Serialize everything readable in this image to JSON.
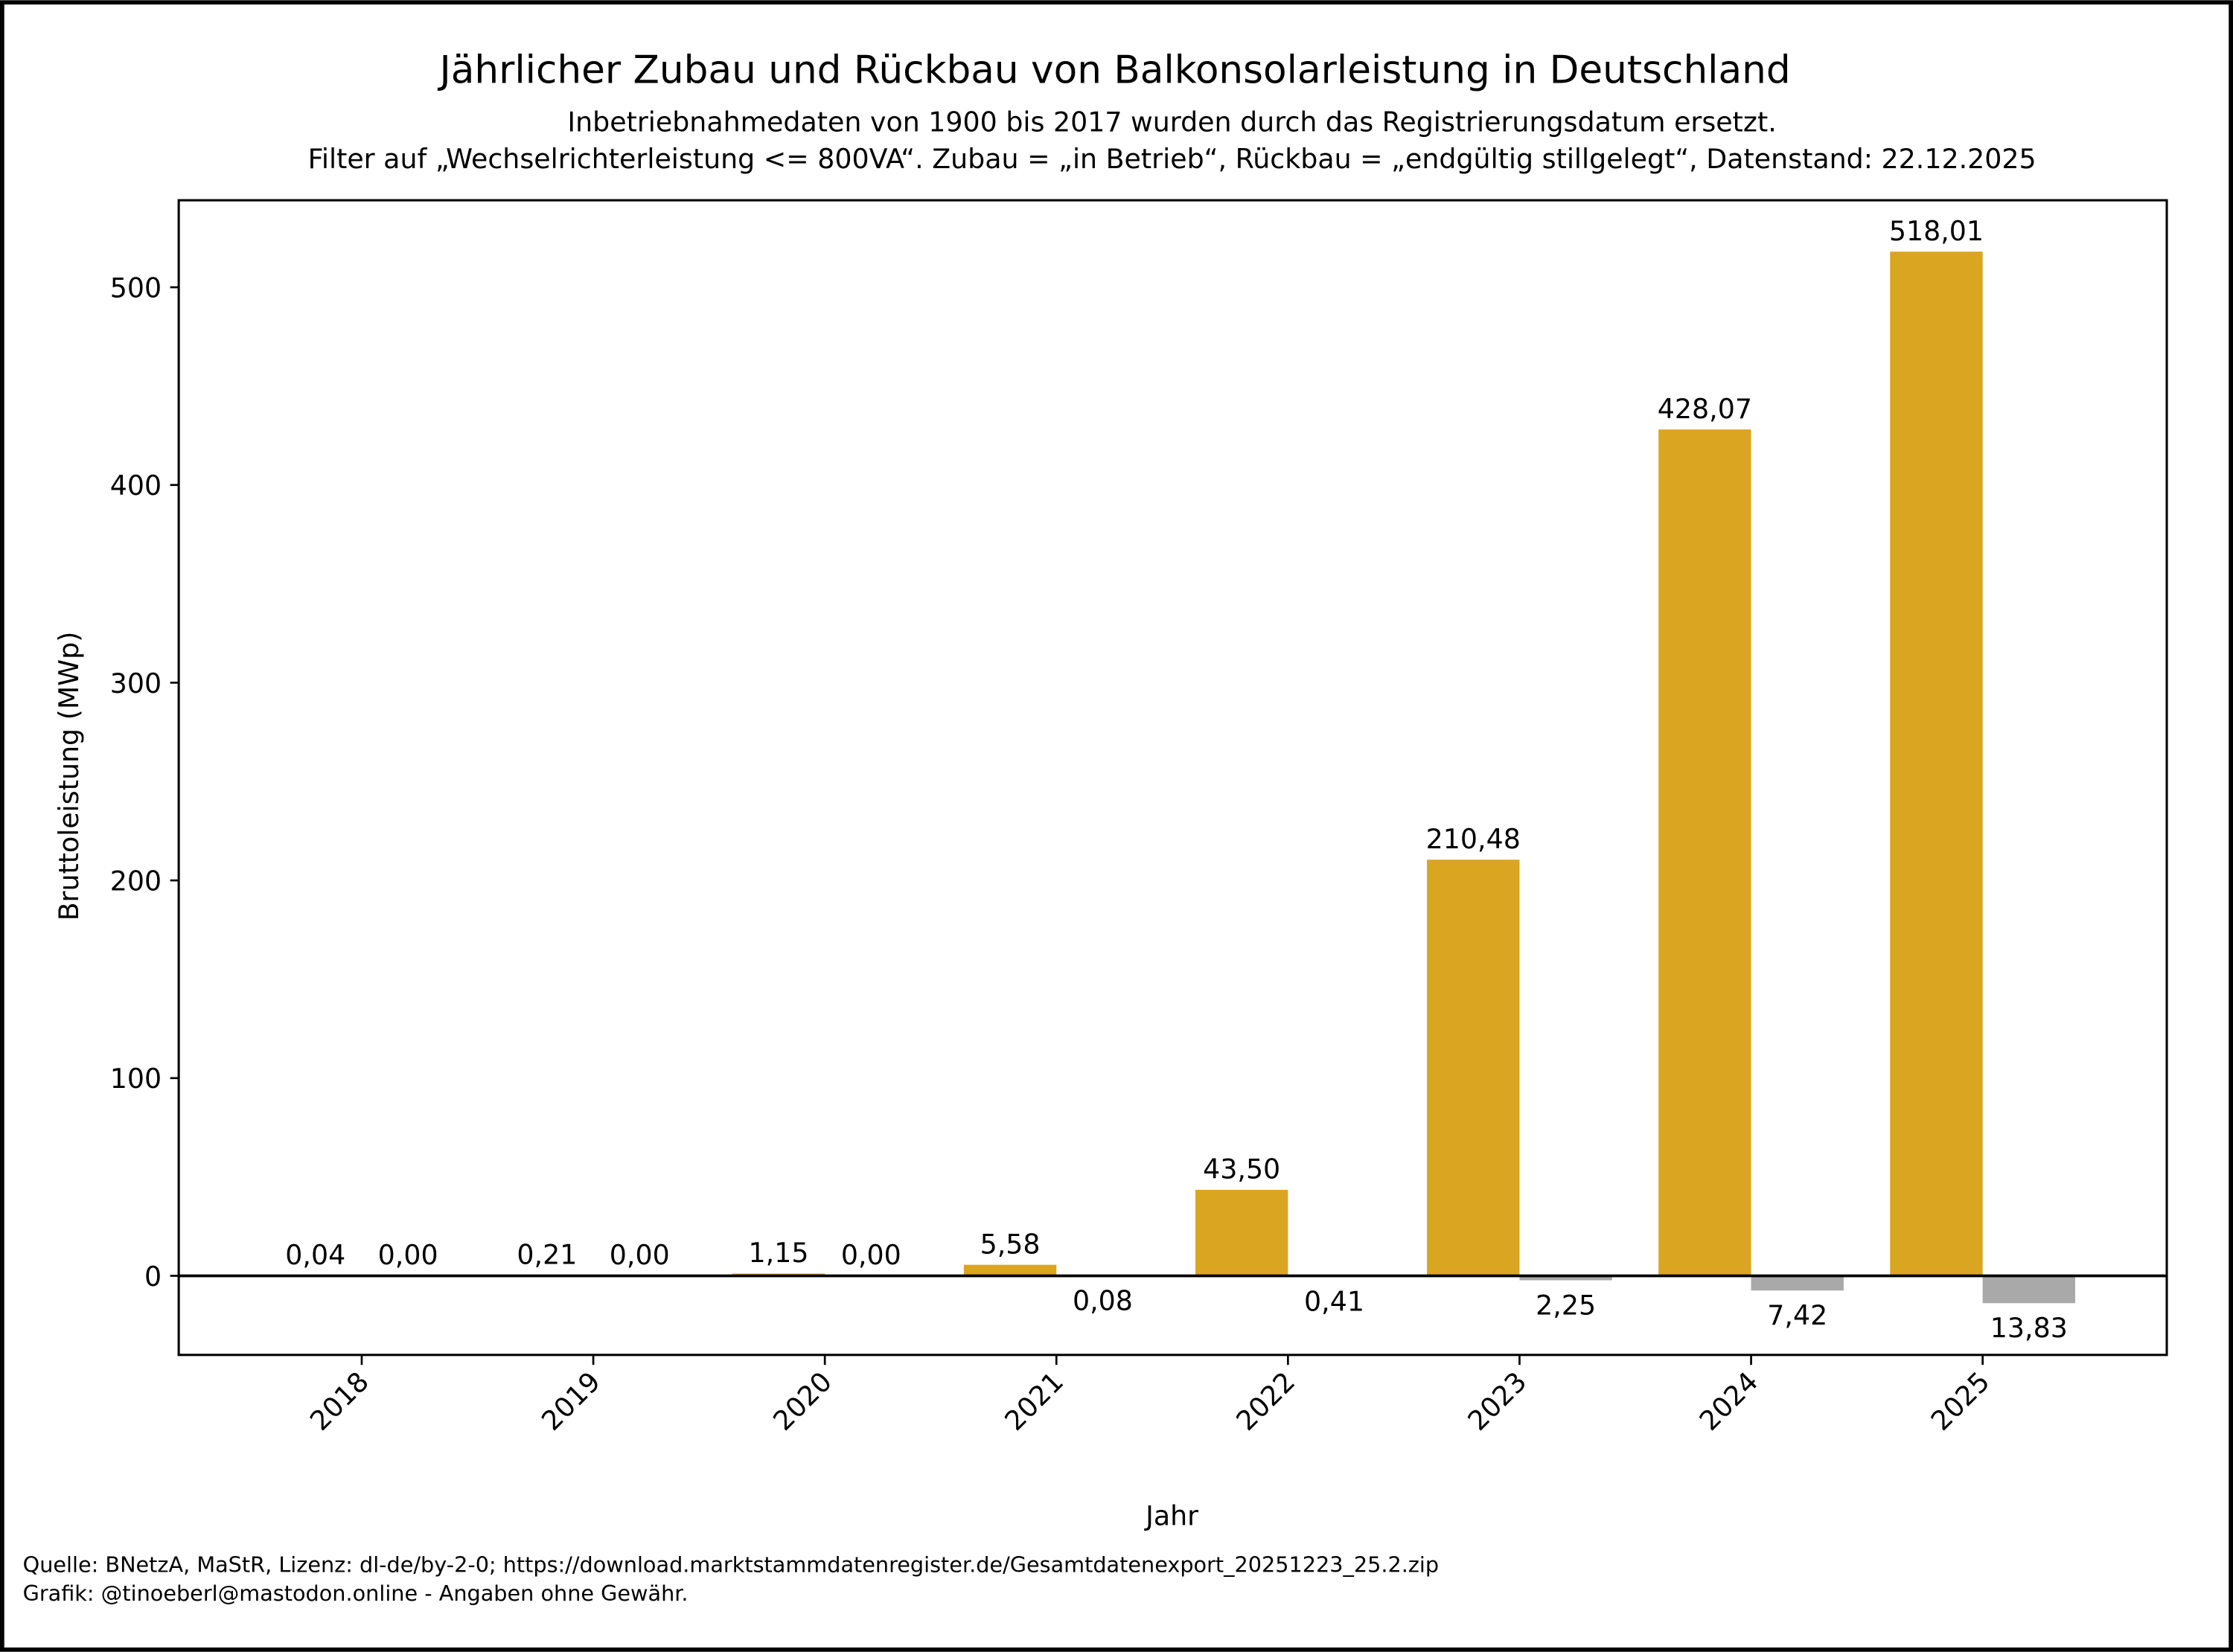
{
  "chart_data": {
    "type": "bar",
    "title": "Jährlicher Zubau und Rückbau von Balkonsolarleistung in Deutschland",
    "subtitle_lines": [
      "Inbetriebnahmedaten von 1900 bis 2017 wurden durch das Registrierungsdatum ersetzt.",
      "Filter auf „Wechselrichterleistung <= 800VA“. Zubau = „in Betrieb“, Rückbau = „endgültig stillgelegt“, Datenstand: 22.12.2025"
    ],
    "xlabel": "Jahr",
    "ylabel": "Bruttoleistung (MWp)",
    "categories": [
      "2018",
      "2019",
      "2020",
      "2021",
      "2022",
      "2023",
      "2024",
      "2025"
    ],
    "series": [
      {
        "name": "Zubau",
        "color": "#DAA520",
        "values": [
          0.04,
          0.21,
          1.15,
          5.58,
          43.5,
          210.48,
          428.07,
          518.01
        ],
        "labels": [
          "0,04",
          "0,21",
          "1,15",
          "5,58",
          "43,50",
          "210,48",
          "428,07",
          "518,01"
        ]
      },
      {
        "name": "Rückbau",
        "color": "#A9A9A9",
        "values": [
          -0.0,
          -0.0,
          -0.0,
          -0.08,
          -0.41,
          -2.25,
          -7.42,
          -13.83
        ],
        "labels": [
          "0,00",
          "0,00",
          "0,00",
          "0,08",
          "0,41",
          "2,25",
          "7,42",
          "13,83"
        ]
      }
    ],
    "yticks": [
      0,
      100,
      200,
      300,
      400,
      500
    ],
    "ylim": [
      -40,
      544
    ],
    "grid": false,
    "legend": "none"
  },
  "footer": {
    "source": "Quelle: BNetzA, MaStR, Lizenz: dl-de/by-2-0; https://download.marktstammdatenregister.de/Gesamtdatenexport_20251223_25.2.zip",
    "credit": "Grafik: @tinoeberl@mastodon.online - Angaben ohne Gewähr."
  }
}
